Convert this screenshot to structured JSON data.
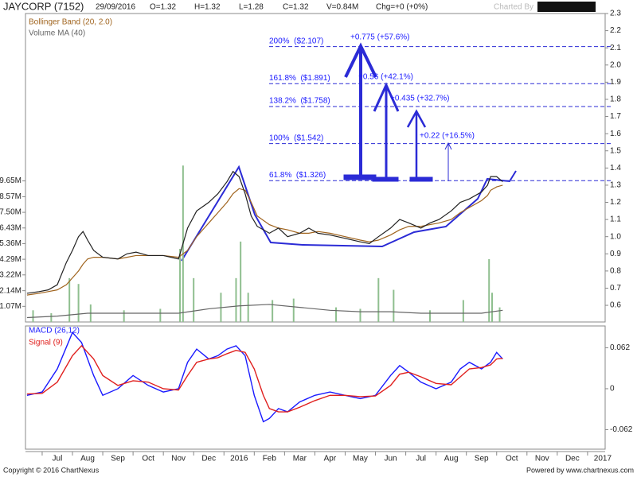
{
  "header": {
    "symbol": "JAYCORP (7152)",
    "date": "29/09/2016",
    "open": "O=1.32",
    "high": "H=1.32",
    "low": "L=1.28",
    "close": "C=1.32",
    "volume": "V=0.84M",
    "change": "Chg=+0 (+0%)",
    "charted_by": "Charted By"
  },
  "footer": {
    "copyright": "Copyright © 2016 ChartNexus",
    "powered": "Powered by www.chartnexus.com"
  },
  "chart_data": [
    {
      "type": "line",
      "title": "JAYCORP (7152)",
      "color": "#222222",
      "x": [
        -1.0,
        -0.6,
        -0.3,
        0,
        0.3,
        0.5,
        0.7,
        0.85,
        1.0,
        1.2,
        1.5,
        2.0,
        2.3,
        2.6,
        3.0,
        3.5,
        4.0,
        4.3,
        4.6,
        5.0,
        5.3,
        5.6,
        5.8,
        6.0,
        6.2,
        6.4,
        6.6,
        7.0,
        7.3,
        7.6,
        8.0,
        8.3,
        8.6,
        9.0,
        9.5,
        10.0,
        10.3,
        10.6,
        11.0,
        11.3,
        11.6,
        12.0,
        12.3,
        12.6,
        13.0,
        13.3,
        13.6,
        14.0,
        14.2,
        14.3,
        14.5,
        14.7
      ],
      "values": [
        0.67,
        0.68,
        0.69,
        0.72,
        0.85,
        0.92,
        1.0,
        1.03,
        0.98,
        0.92,
        0.88,
        0.87,
        0.9,
        0.91,
        0.89,
        0.89,
        0.87,
        1.05,
        1.15,
        1.2,
        1.25,
        1.32,
        1.38,
        1.35,
        1.25,
        1.12,
        1.06,
        1.02,
        1.05,
        1.0,
        1.02,
        1.05,
        1.02,
        1.01,
        0.99,
        0.97,
        0.96,
        1.0,
        1.05,
        1.1,
        1.08,
        1.05,
        1.08,
        1.1,
        1.15,
        1.2,
        1.22,
        1.26,
        1.3,
        1.35,
        1.35,
        1.32
      ],
      "overlays": [
        {
          "name": "Bollinger Band (20, 2.0)",
          "color": "#a0641e",
          "values": [
            0.66,
            0.67,
            0.68,
            0.69,
            0.72,
            0.76,
            0.8,
            0.84,
            0.87,
            0.88,
            0.88,
            0.87,
            0.88,
            0.89,
            0.89,
            0.89,
            0.88,
            0.92,
            1.0,
            1.08,
            1.14,
            1.2,
            1.25,
            1.28,
            1.27,
            1.2,
            1.12,
            1.07,
            1.05,
            1.04,
            1.02,
            1.02,
            1.03,
            1.02,
            1.0,
            0.98,
            0.97,
            0.98,
            1.01,
            1.04,
            1.06,
            1.06,
            1.07,
            1.08,
            1.1,
            1.14,
            1.17,
            1.21,
            1.24,
            1.27,
            1.29,
            1.3
          ]
        },
        {
          "name": "Volume MA (40)",
          "color": "#666666",
          "axis": "y2",
          "x": [
            -1,
            0,
            1,
            2,
            3,
            4,
            5,
            6,
            7,
            8,
            9,
            10,
            11,
            12,
            13,
            14,
            14.7
          ],
          "values": [
            0.3,
            0.4,
            0.6,
            0.6,
            0.6,
            0.6,
            0.9,
            1.1,
            1.2,
            1.0,
            0.8,
            0.7,
            0.7,
            0.6,
            0.6,
            0.6,
            0.8
          ]
        }
      ],
      "volume": {
        "color": "#8fbf8f",
        "x": [
          -0.8,
          -0.2,
          0.4,
          0.7,
          1.1,
          2.2,
          3.4,
          4.05,
          4.15,
          4.5,
          5.4,
          5.9,
          6.05,
          6.3,
          7.1,
          7.8,
          9.2,
          10.0,
          10.6,
          11.1,
          12.3,
          13.4,
          14.25,
          14.35,
          14.6
        ],
        "values": [
          0.8,
          0.6,
          3.0,
          2.6,
          1.2,
          0.8,
          0.9,
          5.0,
          10.7,
          3.0,
          2.0,
          3.0,
          5.5,
          2.0,
          1.5,
          1.6,
          1.0,
          0.9,
          3.0,
          2.2,
          0.8,
          1.5,
          4.3,
          2.0,
          1.0
        ]
      },
      "xlim": [
        -1.05,
        17.95
      ],
      "ylim": [
        0.503,
        2.3
      ],
      "yticks": [
        0.6,
        0.7,
        0.8,
        0.9,
        {
          "value": 1,
          "label": "1.0"
        },
        1.1,
        1.2,
        1.3,
        1.4,
        1.5,
        1.6,
        1.7,
        1.8,
        1.9,
        {
          "value": 2,
          "label": "2.0"
        },
        2.1,
        2.2,
        2.3
      ],
      "y2lim": [
        0,
        21.1
      ],
      "y2ticks": [
        {
          "value": 1.07,
          "label": "1.07M"
        },
        {
          "value": 2.14,
          "label": "2.14M"
        },
        {
          "value": 3.22,
          "label": "3.22M"
        },
        {
          "value": 4.29,
          "label": "4.29M"
        },
        {
          "value": 5.36,
          "label": "5.36M"
        },
        {
          "value": 6.43,
          "label": "6.43M"
        },
        {
          "value": 7.5,
          "label": "7.50M"
        },
        {
          "value": 8.57,
          "label": "8.57M"
        },
        {
          "value": 9.65,
          "label": "9.65M"
        }
      ],
      "levels": [
        {
          "value": 2.107,
          "label": "200%  ($2.107)"
        },
        {
          "value": 1.891,
          "label": "161.8%  ($1.891)"
        },
        {
          "value": 1.758,
          "label": "138.2%  ($1.758)"
        },
        {
          "value": 1.542,
          "label": "100%  ($1.542)"
        },
        {
          "value": 1.326,
          "label": "61.8%  ($1.326)"
        }
      ],
      "annotations": [
        "+0.775 (+57.6%)",
        "+0.56 (+42.1%)",
        "+0.435 (+32.7%)",
        "+0.22 (+16.5%)"
      ]
    },
    {
      "type": "line",
      "x": [
        -1,
        -0.5,
        0,
        0.5,
        0.8,
        1.2,
        1.5,
        2,
        2.5,
        3,
        3.5,
        4,
        4.3,
        4.6,
        5.0,
        5.3,
        5.6,
        5.9,
        6.2,
        6.5,
        6.8,
        7.0,
        7.3,
        7.6,
        8.0,
        8.5,
        9.0,
        9.5,
        10.0,
        10.5,
        11.0,
        11.3,
        11.6,
        12.0,
        12.5,
        13.0,
        13.3,
        13.6,
        14.0,
        14.3,
        14.5,
        14.7
      ],
      "series": [
        {
          "name": "MACD (26,12)",
          "color": "#1a1aff",
          "values": [
            -0.01,
            -0.005,
            0.03,
            0.085,
            0.07,
            0.02,
            -0.01,
            0.0,
            0.02,
            0.005,
            -0.005,
            0.0,
            0.04,
            0.06,
            0.045,
            0.05,
            0.06,
            0.065,
            0.05,
            -0.01,
            -0.05,
            -0.045,
            -0.03,
            -0.035,
            -0.02,
            -0.01,
            -0.005,
            -0.01,
            -0.015,
            -0.01,
            0.02,
            0.035,
            0.025,
            0.01,
            0.0,
            0.01,
            0.03,
            0.04,
            0.03,
            0.04,
            0.055,
            0.045
          ]
        },
        {
          "name": "Signal (9)",
          "color": "#e0201e",
          "values": [
            -0.008,
            -0.007,
            0.01,
            0.05,
            0.065,
            0.045,
            0.02,
            0.005,
            0.012,
            0.01,
            0.0,
            -0.002,
            0.02,
            0.04,
            0.045,
            0.047,
            0.053,
            0.058,
            0.055,
            0.03,
            -0.01,
            -0.03,
            -0.035,
            -0.035,
            -0.028,
            -0.018,
            -0.01,
            -0.01,
            -0.012,
            -0.011,
            0.005,
            0.022,
            0.025,
            0.018,
            0.008,
            0.006,
            0.018,
            0.03,
            0.032,
            0.036,
            0.045,
            0.046
          ]
        }
      ],
      "xlim": [
        -1.05,
        17.95
      ],
      "ylim": [
        -0.0915,
        0.095
      ],
      "yticks": [
        -0.062,
        0,
        0.062
      ],
      "xticks": [
        {
          "value": 0,
          "label": "Jul"
        },
        {
          "value": 1,
          "label": "Aug"
        },
        {
          "value": 2,
          "label": "Sep"
        },
        {
          "value": 3,
          "label": "Oct"
        },
        {
          "value": 4,
          "label": "Nov"
        },
        {
          "value": 5,
          "label": "Dec"
        },
        {
          "value": 6,
          "label": "2016"
        },
        {
          "value": 7,
          "label": "Feb"
        },
        {
          "value": 8,
          "label": "Mar"
        },
        {
          "value": 9,
          "label": "Apr"
        },
        {
          "value": 10,
          "label": "May"
        },
        {
          "value": 11,
          "label": "Jun"
        },
        {
          "value": 12,
          "label": "Jul"
        },
        {
          "value": 13,
          "label": "Aug"
        },
        {
          "value": 14,
          "label": "Sep"
        },
        {
          "value": 15,
          "label": "Oct"
        },
        {
          "value": 16,
          "label": "Nov"
        },
        {
          "value": 17,
          "label": "Dec"
        },
        {
          "value": 18,
          "label": "2017"
        }
      ]
    }
  ]
}
